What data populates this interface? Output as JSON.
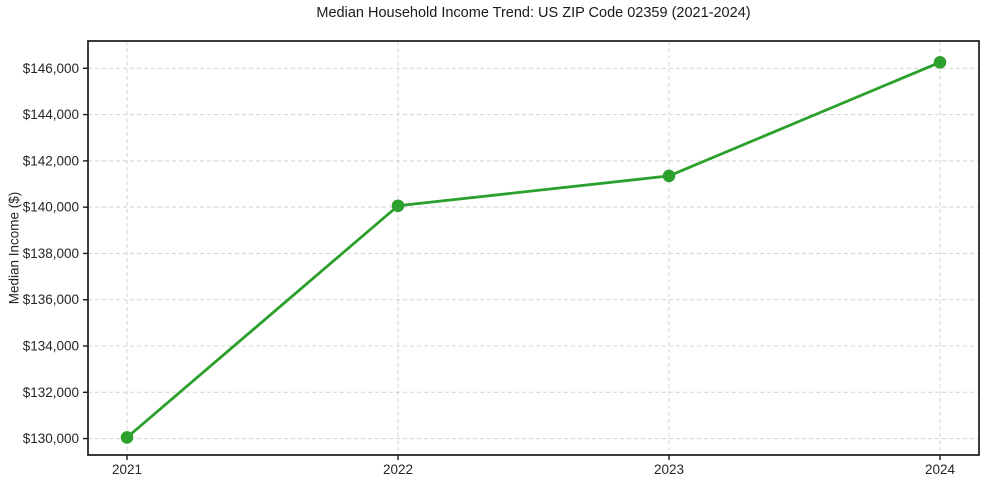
{
  "figure": {
    "background": "#ffffff"
  },
  "chart_data": {
    "type": "line",
    "title": "Median Household Income Trend: US ZIP Code 02359 (2021-2024)",
    "xlabel": "",
    "ylabel": "Median Income ($)",
    "x": [
      2021,
      2022,
      2023,
      2024
    ],
    "xtick_labels": [
      "2021",
      "2022",
      "2023",
      "2024"
    ],
    "values": [
      130050,
      140060,
      141350,
      146260
    ],
    "ytick_values": [
      130000,
      132000,
      134000,
      136000,
      138000,
      140000,
      142000,
      144000,
      146000
    ],
    "ytick_labels": [
      "$130,000",
      "$132,000",
      "$134,000",
      "$136,000",
      "$138,000",
      "$140,000",
      "$142,000",
      "$144,000",
      "$146,000"
    ],
    "ylim": [
      129290,
      147180
    ],
    "grid": true,
    "grid_style": "dashed",
    "legend": null,
    "line_color": "#2ca02c",
    "marker": "circle",
    "marker_radius": 6.3,
    "line_width": 2.8,
    "grid_color": "#d4d4d4",
    "spine_color": "#1a1a1a",
    "tick_text_color": "#262626",
    "plot_background": "#ffffff"
  }
}
